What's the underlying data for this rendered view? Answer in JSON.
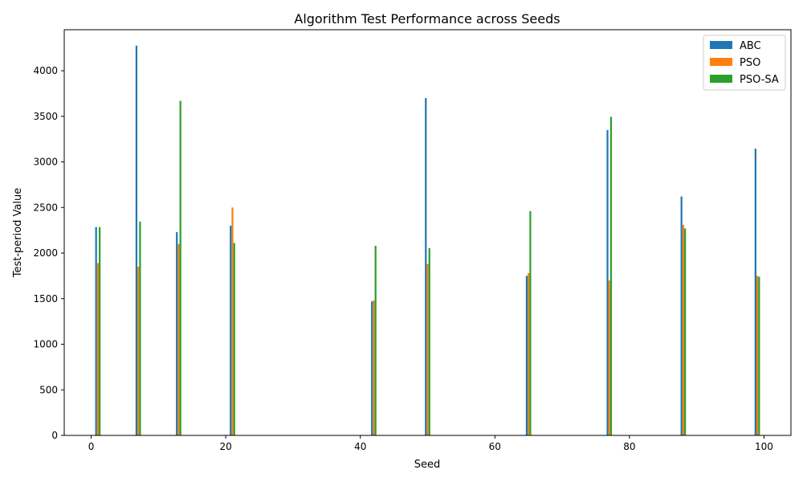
{
  "chart_data": {
    "type": "bar",
    "title": "Algorithm Test Performance across Seeds",
    "xlabel": "Seed",
    "ylabel": "Test-period Value",
    "x_ticks": [
      0,
      20,
      40,
      60,
      80,
      100
    ],
    "y_ticks": [
      0,
      500,
      1000,
      1500,
      2000,
      2500,
      3000,
      3500,
      4000
    ],
    "xlim": [
      -4,
      104
    ],
    "ylim": [
      0,
      4450
    ],
    "legend_position": "top-right",
    "grid": false,
    "seeds": [
      1,
      7,
      13,
      21,
      42,
      50,
      65,
      77,
      88,
      99
    ],
    "series": [
      {
        "name": "ABC",
        "color": "#1f77b4",
        "values": [
          2285,
          4275,
          2230,
          2300,
          1470,
          3700,
          1750,
          3350,
          2620,
          3145
        ]
      },
      {
        "name": "PSO",
        "color": "#ff7f0e",
        "values": [
          1890,
          1850,
          2100,
          2500,
          1480,
          1880,
          1780,
          1700,
          2310,
          1750
        ]
      },
      {
        "name": "PSO-SA",
        "color": "#2ca02c",
        "values": [
          2285,
          2345,
          3670,
          2110,
          2080,
          2055,
          2460,
          3495,
          2270,
          1740
        ]
      }
    ]
  }
}
